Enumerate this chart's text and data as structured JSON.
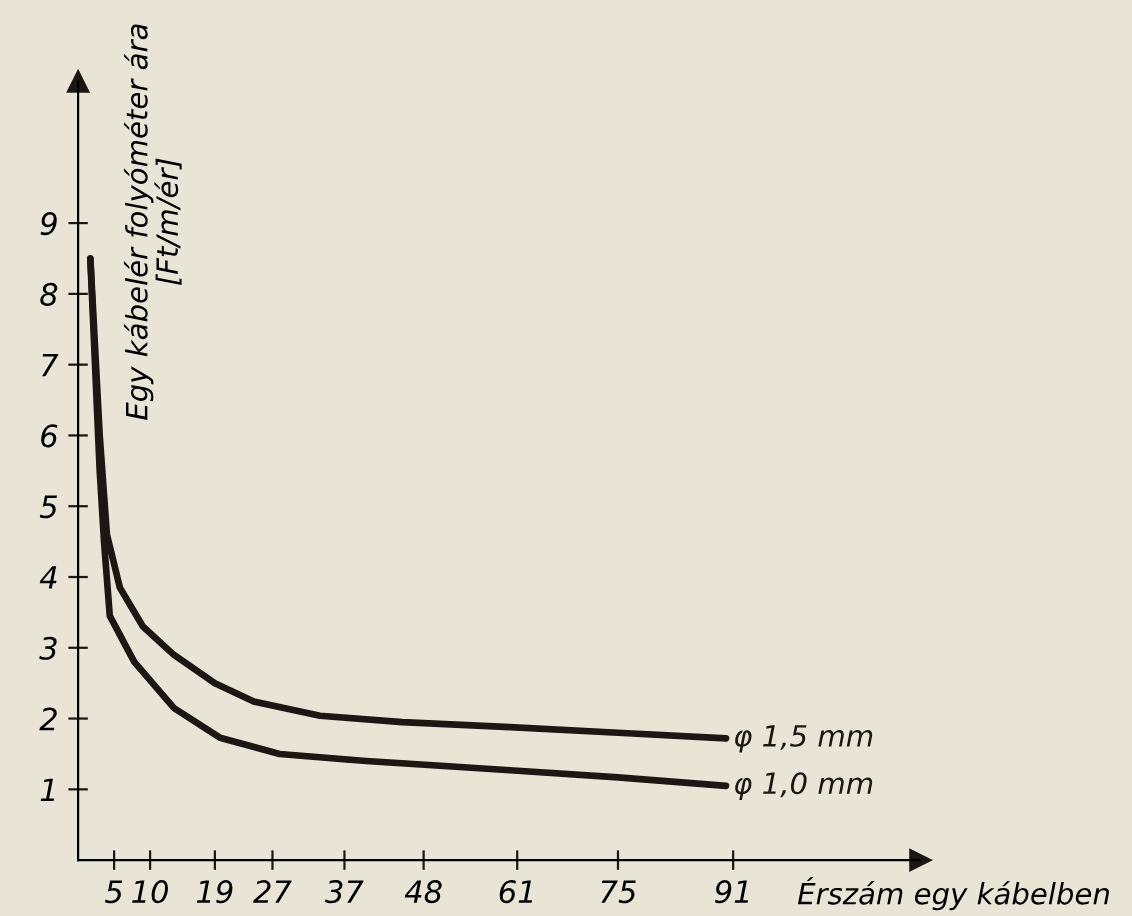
{
  "chart_data": {
    "type": "line",
    "xlabel": "Érszám egy kábelben",
    "ylabel": "Egy kábelér folyóméter ára\n[Ft/m/ér]",
    "xlim": [
      0,
      117
    ],
    "ylim": [
      0,
      11
    ],
    "xticks": [
      5,
      10,
      19,
      27,
      37,
      48,
      61,
      75,
      91
    ],
    "yticks": [
      1,
      2,
      3,
      4,
      5,
      6,
      7,
      8,
      9
    ],
    "grid": false,
    "legend": false,
    "marker": "none",
    "line_style": "solid",
    "series": [
      {
        "name": "φ 1,5 mm",
        "color": "#1c1712",
        "x": [
          1.7,
          3,
          4,
          5.8,
          9,
          13.3,
          19,
          24.4,
          33.6,
          45,
          60,
          75,
          90
        ],
        "values": [
          8.5,
          6.0,
          4.6,
          3.85,
          3.3,
          2.9,
          2.5,
          2.24,
          2.04,
          1.95,
          1.88,
          1.8,
          1.72
        ]
      },
      {
        "name": "φ 1,0 mm",
        "color": "#1c1712",
        "x": [
          1.7,
          3,
          3.6,
          4.4,
          7.8,
          13.3,
          19.7,
          28,
          40,
          60,
          75,
          90
        ],
        "values": [
          8.5,
          5.5,
          4.5,
          3.45,
          2.8,
          2.15,
          1.73,
          1.5,
          1.4,
          1.27,
          1.17,
          1.05
        ]
      }
    ]
  }
}
